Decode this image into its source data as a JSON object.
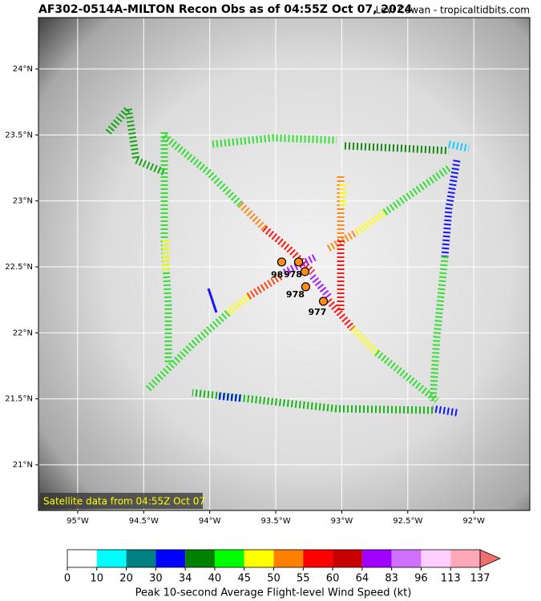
{
  "map": {
    "title": "AF302-0514A-MILTON Recon Obs as of 04:55Z Oct 07, 2024",
    "credit": "Levi Cowan - tropicaltidbits.com",
    "xlim": [
      -95.297,
      -91.576
    ],
    "ylim": [
      20.654,
      24.389
    ],
    "xticks": [
      {
        "value": -95,
        "label": "95°W"
      },
      {
        "value": -94.5,
        "label": "94.5°W"
      },
      {
        "value": -94,
        "label": "94°W"
      },
      {
        "value": -93.5,
        "label": "93.5°W"
      },
      {
        "value": -93,
        "label": "93°W"
      },
      {
        "value": -92.5,
        "label": "92.5°W"
      },
      {
        "value": -92,
        "label": "92°W"
      }
    ],
    "yticks": [
      {
        "value": 21,
        "label": "21°N"
      },
      {
        "value": 21.5,
        "label": "21.5°N"
      },
      {
        "value": 22,
        "label": "22°N"
      },
      {
        "value": 22.5,
        "label": "22.5°N"
      },
      {
        "value": 23,
        "label": "23°N"
      },
      {
        "value": 23.5,
        "label": "23.5°N"
      },
      {
        "value": 24,
        "label": "24°N"
      }
    ],
    "note": "Satellite data from 04:55Z Oct 07",
    "dropsondes": [
      {
        "lon": -93.455,
        "lat": 22.537
      },
      {
        "lon": -93.327,
        "lat": 22.537
      },
      {
        "lon": -93.279,
        "lat": 22.464
      },
      {
        "lon": -93.273,
        "lat": 22.349
      },
      {
        "lon": -93.139,
        "lat": 22.239
      }
    ],
    "pressure_labels": [
      {
        "text": "98",
        "lon": -93.49,
        "lat": 22.435
      },
      {
        "text": "978",
        "lon": -93.37,
        "lat": 22.441
      },
      {
        "text": "978",
        "lon": -93.352,
        "lat": 22.289
      },
      {
        "text": "977",
        "lon": -93.185,
        "lat": 22.155
      }
    ]
  },
  "colorbar": {
    "bounds": [
      0,
      10,
      20,
      30,
      34,
      40,
      45,
      50,
      55,
      60,
      64,
      83,
      96,
      113,
      137
    ],
    "colors": [
      "#ffffff",
      "#00ffff",
      "#008080",
      "#0000ff",
      "#008000",
      "#00ff00",
      "#ffff00",
      "#ff8000",
      "#ff0000",
      "#c80000",
      "#a000ff",
      "#d070ff",
      "#ffd0ff",
      "#ffa8b8"
    ],
    "over_color": "#f07070",
    "label": "Peak 10-second Average Flight-level Wind Speed (kt)"
  }
}
